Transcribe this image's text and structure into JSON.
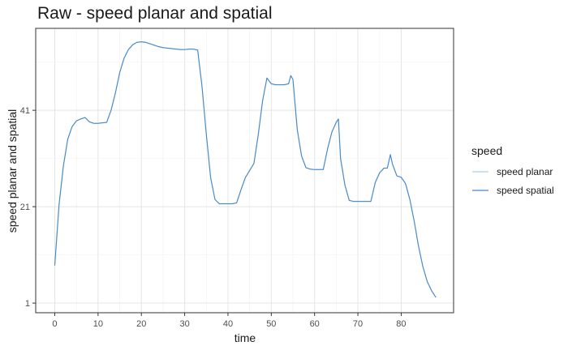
{
  "chart_data": {
    "type": "line",
    "title": "Raw - speed planar and spatial",
    "xlabel": "time",
    "ylabel": "speed planar and spatial",
    "xlim": [
      -4.4,
      92.1
    ],
    "ylim": [
      -1.0,
      58.0
    ],
    "x_ticks": [
      0,
      10,
      20,
      30,
      40,
      50,
      60,
      70,
      80
    ],
    "x_tick_labels": [
      "0",
      "10",
      "20",
      "30",
      "40",
      "50",
      "60",
      "70",
      "80"
    ],
    "y_ticks": [
      1,
      21,
      41
    ],
    "y_tick_labels": [
      "1",
      "21",
      "41"
    ],
    "grid": true,
    "legend": {
      "title": "speed",
      "position": "right"
    },
    "series": [
      {
        "name": "speed planar",
        "color": "#a6d2ea",
        "x": [
          0,
          1,
          2,
          3,
          4,
          5,
          6,
          7,
          8,
          9,
          10,
          11,
          12,
          13,
          14,
          15,
          16,
          17,
          18,
          19,
          20,
          21,
          22,
          23,
          24,
          25,
          26,
          27,
          28,
          29,
          30,
          31,
          32,
          33,
          34,
          35,
          36,
          37,
          38,
          39,
          40,
          41,
          42,
          43,
          44,
          45,
          46,
          47,
          48,
          49,
          50,
          51,
          52,
          53,
          54,
          54.5,
          55,
          56,
          57,
          58,
          59,
          60,
          61,
          62,
          63,
          64,
          65,
          65.5,
          66,
          67,
          68,
          69,
          70,
          71,
          72,
          73,
          74,
          75,
          76,
          76.8,
          77.5,
          78,
          79,
          80,
          81,
          82,
          83,
          84,
          85,
          86,
          87,
          88
        ],
        "y": [
          8.8,
          21.5,
          29.5,
          35,
          37.6,
          38.8,
          39.2,
          39.5,
          38.6,
          38.3,
          38.3,
          38.4,
          38.5,
          41,
          44.6,
          48.8,
          51.8,
          53.6,
          54.6,
          55.1,
          55.2,
          55.1,
          54.8,
          54.5,
          54.2,
          54.0,
          53.9,
          53.8,
          53.7,
          53.6,
          53.6,
          53.7,
          53.7,
          53.5,
          46,
          36,
          27,
          22.5,
          21.6,
          21.6,
          21.6,
          21.6,
          21.8,
          24.5,
          27,
          28.5,
          30,
          36,
          43,
          47.7,
          46.5,
          46.3,
          46.3,
          46.3,
          46.5,
          48.2,
          47.4,
          37,
          31.5,
          29.1,
          28.8,
          28.7,
          28.7,
          28.7,
          33,
          36.5,
          38.5,
          39.2,
          31,
          25.5,
          22.3,
          22.1,
          22.1,
          22.1,
          22.1,
          22.1,
          26,
          28,
          29,
          29,
          31.8,
          29.8,
          27.4,
          27.1,
          25.8,
          22.5,
          18,
          12.8,
          8.6,
          5.5,
          3.6,
          2.2
        ]
      },
      {
        "name": "speed spatial",
        "color": "#4a86c5",
        "x": [
          0,
          1,
          2,
          3,
          4,
          5,
          6,
          7,
          8,
          9,
          10,
          11,
          12,
          13,
          14,
          15,
          16,
          17,
          18,
          19,
          20,
          21,
          22,
          23,
          24,
          25,
          26,
          27,
          28,
          29,
          30,
          31,
          32,
          33,
          34,
          35,
          36,
          37,
          38,
          39,
          40,
          41,
          42,
          43,
          44,
          45,
          46,
          47,
          48,
          49,
          50,
          51,
          52,
          53,
          54,
          54.5,
          55,
          56,
          57,
          58,
          59,
          60,
          61,
          62,
          63,
          64,
          65,
          65.5,
          66,
          67,
          68,
          69,
          70,
          71,
          72,
          73,
          74,
          75,
          76,
          76.8,
          77.5,
          78,
          79,
          80,
          81,
          82,
          83,
          84,
          85,
          86,
          87,
          88
        ],
        "y": [
          8.8,
          21.5,
          29.5,
          35,
          37.6,
          38.8,
          39.2,
          39.5,
          38.6,
          38.3,
          38.3,
          38.4,
          38.5,
          41,
          44.6,
          48.8,
          51.8,
          53.6,
          54.6,
          55.1,
          55.2,
          55.1,
          54.8,
          54.5,
          54.2,
          54.0,
          53.9,
          53.8,
          53.7,
          53.6,
          53.6,
          53.7,
          53.7,
          53.5,
          46,
          36,
          27,
          22.5,
          21.6,
          21.6,
          21.6,
          21.6,
          21.8,
          24.5,
          27,
          28.5,
          30,
          36,
          43,
          47.7,
          46.5,
          46.3,
          46.3,
          46.3,
          46.5,
          48.2,
          47.4,
          37,
          31.5,
          29.1,
          28.8,
          28.7,
          28.7,
          28.7,
          33,
          36.5,
          38.5,
          39.2,
          31,
          25.5,
          22.3,
          22.1,
          22.1,
          22.1,
          22.1,
          22.1,
          26,
          28,
          29,
          29,
          31.8,
          29.8,
          27.4,
          27.1,
          25.8,
          22.5,
          18,
          12.8,
          8.6,
          5.5,
          3.6,
          2.2
        ]
      }
    ]
  }
}
